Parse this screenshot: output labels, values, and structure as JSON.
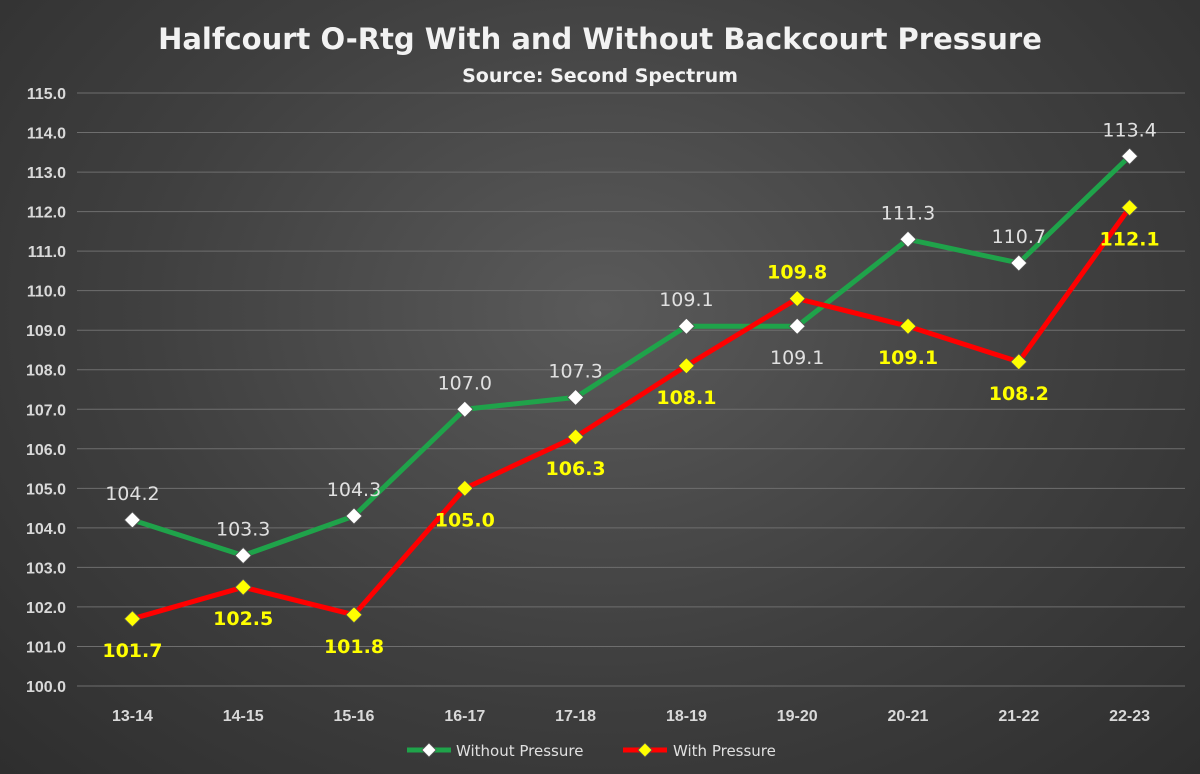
{
  "chart_data": {
    "type": "line",
    "title": "Halfcourt O-Rtg With and Without Backcourt Pressure",
    "subtitle": "Source: Second Spectrum",
    "categories": [
      "13-14",
      "14-15",
      "15-16",
      "16-17",
      "17-18",
      "18-19",
      "19-20",
      "20-21",
      "21-22",
      "22-23"
    ],
    "ylim": [
      100.0,
      115.0
    ],
    "yticks": [
      "100.0",
      "101.0",
      "102.0",
      "103.0",
      "104.0",
      "105.0",
      "106.0",
      "107.0",
      "108.0",
      "109.0",
      "110.0",
      "111.0",
      "112.0",
      "113.0",
      "114.0",
      "115.0"
    ],
    "grid": true,
    "legend_position": "bottom",
    "series": [
      {
        "name": "Without Pressure",
        "line_color": "#1fa34a",
        "marker_color": "#ffffff",
        "values": [
          104.2,
          103.3,
          104.3,
          107.0,
          107.3,
          109.1,
          109.1,
          111.3,
          110.7,
          113.4
        ],
        "labels": [
          "104.2",
          "103.3",
          "104.3",
          "107.0",
          "107.3",
          "109.1",
          "109.1",
          "111.3",
          "110.7",
          "113.4"
        ]
      },
      {
        "name": "With Pressure",
        "line_color": "#ff0000",
        "marker_color": "#ffff00",
        "values": [
          101.7,
          102.5,
          101.8,
          105.0,
          106.3,
          108.1,
          109.8,
          109.1,
          108.2,
          112.1
        ],
        "labels": [
          "101.7",
          "102.5",
          "101.8",
          "105.0",
          "106.3",
          "108.1",
          "109.8",
          "109.1",
          "108.2",
          "112.1"
        ]
      }
    ]
  }
}
